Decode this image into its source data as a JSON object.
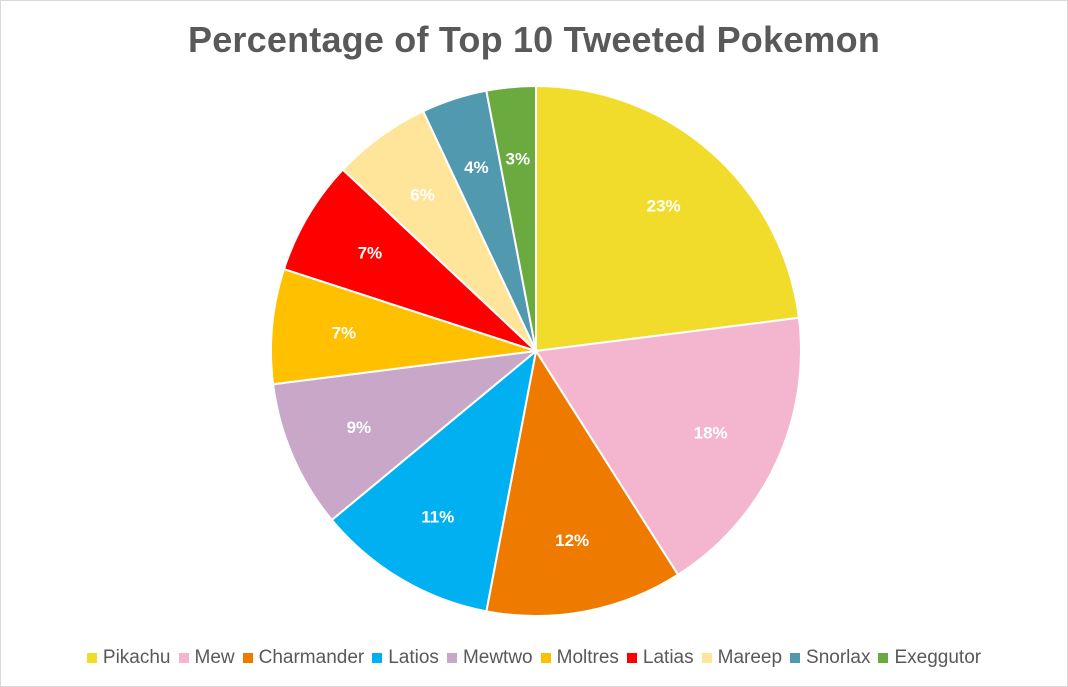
{
  "chart_data": {
    "type": "pie",
    "title": "Percentage of Top 10 Tweeted Pokemon",
    "categories": [
      "Pikachu",
      "Mew",
      "Charmander",
      "Latios",
      "Mewtwo",
      "Moltres",
      "Latias",
      "Mareep",
      "Snorlax",
      "Exeggutor"
    ],
    "values": [
      23,
      18,
      12,
      11,
      9,
      7,
      7,
      6,
      4,
      3
    ],
    "labels": [
      "23%",
      "18%",
      "12%",
      "11%",
      "9%",
      "7%",
      "7%",
      "6%",
      "4%",
      "3%"
    ],
    "colors": [
      "#F2DC2B",
      "#F4B6CF",
      "#EE7B00",
      "#00B0F0",
      "#C8A7C8",
      "#FFC000",
      "#FF0000",
      "#FFE59A",
      "#5099AE",
      "#6AAA3F"
    ],
    "legend_position": "bottom",
    "start_angle_degrees": 0,
    "direction": "clockwise"
  }
}
